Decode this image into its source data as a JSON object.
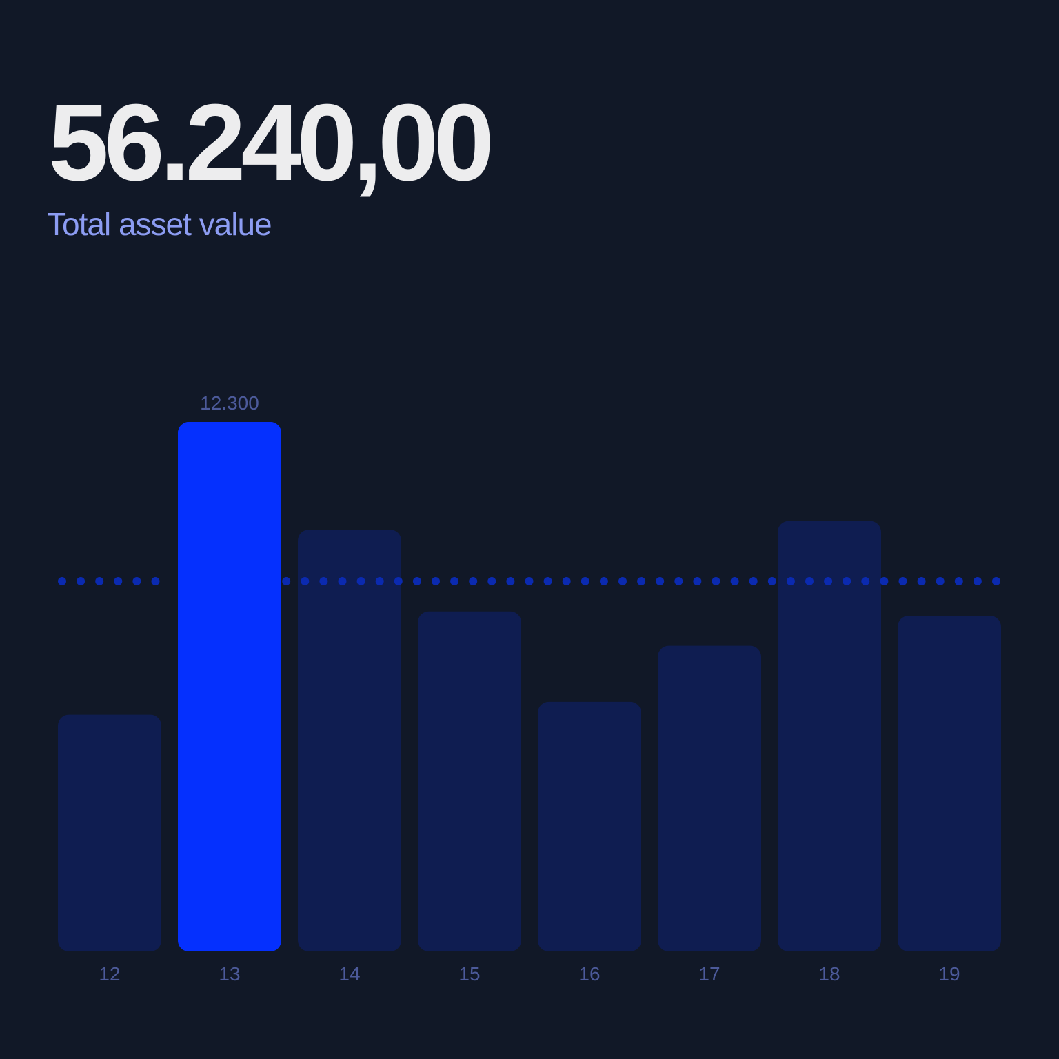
{
  "header": {
    "value": "56.240,00",
    "label": "Total asset value"
  },
  "colors": {
    "background": "#111827",
    "bar": "#0f1d51",
    "highlight_bar": "#0530fe",
    "average_line": "#0b2ab0",
    "tick_label": "#4c5a9a",
    "value_label": "#4c5a9a",
    "headline": "#ededee",
    "subtitle": "#8c9cf2"
  },
  "chart_data": {
    "type": "bar",
    "categories": [
      "12",
      "13",
      "14",
      "15",
      "16",
      "17",
      "18",
      "19"
    ],
    "values": [
      5500,
      12300,
      9800,
      7900,
      5800,
      7100,
      10000,
      7800
    ],
    "highlight_index": 1,
    "highlight_label": "12.300",
    "reference_line": 8600,
    "ylim": [
      0,
      12300
    ],
    "grid": false,
    "title": "",
    "xlabel": "",
    "ylabel": ""
  }
}
